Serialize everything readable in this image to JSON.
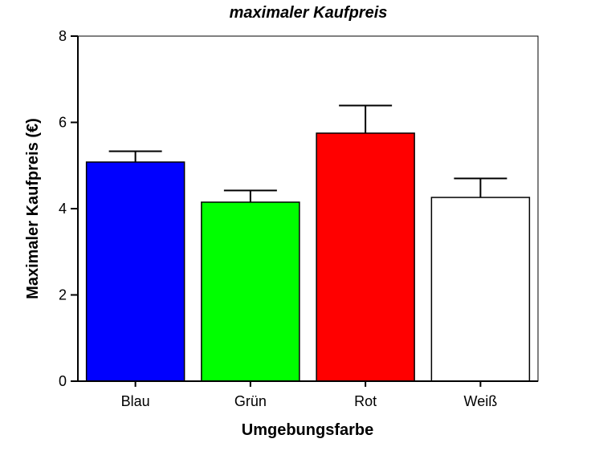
{
  "chart_data": {
    "type": "bar",
    "title": "maximaler Kaufpreis",
    "xlabel": "Umgebungsfarbe",
    "ylabel": "Maximaler Kaufpreis (€)",
    "categories": [
      "Blau",
      "Grün",
      "Rot",
      "Weiß"
    ],
    "values": [
      5.08,
      4.15,
      5.75,
      4.26
    ],
    "error_upper": [
      5.33,
      4.42,
      6.39,
      4.7
    ],
    "colors": [
      "#0000ff",
      "#00ff00",
      "#ff0000",
      "#ffffff"
    ],
    "ylim": [
      0,
      8
    ],
    "yticks": [
      0,
      2,
      4,
      6,
      8
    ],
    "grid": false,
    "legend": "none"
  }
}
